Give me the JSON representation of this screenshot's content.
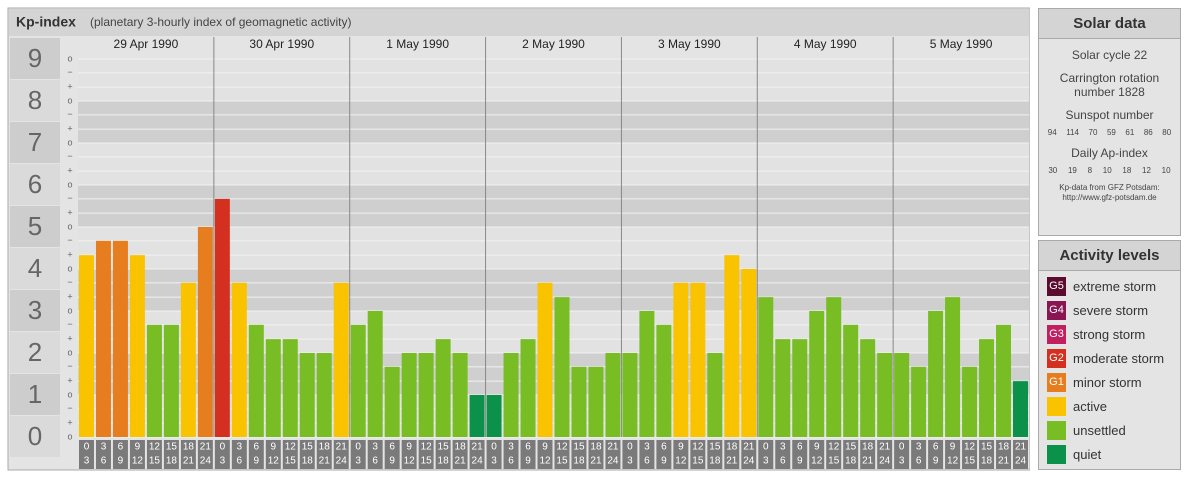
{
  "chart_data": {
    "type": "bar",
    "title": "Kp-index",
    "subtitle": "(planetary 3-hourly index of geomagnetic activity)",
    "days": [
      "29 Apr 1990",
      "30 Apr 1990",
      "1 May 1990",
      "2 May 1990",
      "3 May 1990",
      "4 May 1990",
      "5 May 1990"
    ],
    "intervals": [
      [
        "0",
        "3"
      ],
      [
        "3",
        "6"
      ],
      [
        "6",
        "9"
      ],
      [
        "9",
        "12"
      ],
      [
        "12",
        "15"
      ],
      [
        "15",
        "18"
      ],
      [
        "18",
        "21"
      ],
      [
        "21",
        "24"
      ]
    ],
    "values": [
      4.33,
      4.67,
      4.67,
      4.33,
      2.67,
      2.67,
      3.67,
      5,
      5.67,
      3.67,
      2.67,
      2.33,
      2.33,
      2,
      2,
      3.67,
      2.67,
      3,
      1.67,
      2,
      2,
      2.33,
      2,
      1,
      1,
      2,
      2.33,
      3.67,
      3.33,
      1.67,
      1.67,
      2,
      2,
      3,
      2.67,
      3.67,
      3.67,
      2,
      4.33,
      4,
      3.33,
      2.33,
      2.33,
      3,
      3.33,
      2.67,
      2.33,
      2,
      2,
      1.67,
      3,
      3.33,
      1.67,
      2.33,
      2.67,
      1.33
    ],
    "colors": [
      "#f9c300",
      "#e67e1f",
      "#e67e1f",
      "#f9c300",
      "#77bd23",
      "#77bd23",
      "#f9c300",
      "#e67e1f",
      "#d43020",
      "#f9c300",
      "#77bd23",
      "#77bd23",
      "#77bd23",
      "#77bd23",
      "#77bd23",
      "#f9c300",
      "#77bd23",
      "#77bd23",
      "#77bd23",
      "#77bd23",
      "#77bd23",
      "#77bd23",
      "#77bd23",
      "#0b9149",
      "#0b9149",
      "#77bd23",
      "#77bd23",
      "#f9c300",
      "#77bd23",
      "#77bd23",
      "#77bd23",
      "#77bd23",
      "#77bd23",
      "#77bd23",
      "#77bd23",
      "#f9c300",
      "#f9c300",
      "#77bd23",
      "#f9c300",
      "#f9c300",
      "#77bd23",
      "#77bd23",
      "#77bd23",
      "#77bd23",
      "#77bd23",
      "#77bd23",
      "#77bd23",
      "#77bd23",
      "#77bd23",
      "#77bd23",
      "#77bd23",
      "#77bd23",
      "#77bd23",
      "#77bd23",
      "#77bd23",
      "#0b9149"
    ],
    "ylim": [
      0,
      9
    ],
    "yticks": [
      0,
      1,
      2,
      3,
      4,
      5,
      6,
      7,
      8,
      9
    ],
    "yticks_minor": [
      {
        "value": 0,
        "label": "o"
      },
      {
        "value": 0.33,
        "label": "+"
      },
      {
        "value": 0.67,
        "label": "−"
      },
      {
        "value": 1,
        "label": "o"
      },
      {
        "value": 1.33,
        "label": "+"
      },
      {
        "value": 1.67,
        "label": "−"
      },
      {
        "value": 2,
        "label": "o"
      },
      {
        "value": 2.33,
        "label": "+"
      },
      {
        "value": 2.67,
        "label": "−"
      },
      {
        "value": 3,
        "label": "o"
      },
      {
        "value": 3.33,
        "label": "+"
      },
      {
        "value": 3.67,
        "label": "−"
      },
      {
        "value": 4,
        "label": "o"
      },
      {
        "value": 4.33,
        "label": "+"
      },
      {
        "value": 4.67,
        "label": "−"
      },
      {
        "value": 5,
        "label": "o"
      },
      {
        "value": 5.33,
        "label": "+"
      },
      {
        "value": 5.67,
        "label": "−"
      },
      {
        "value": 6,
        "label": "o"
      },
      {
        "value": 6.33,
        "label": "+"
      },
      {
        "value": 6.67,
        "label": "−"
      },
      {
        "value": 7,
        "label": "o"
      },
      {
        "value": 7.33,
        "label": "+"
      },
      {
        "value": 7.67,
        "label": "−"
      },
      {
        "value": 8,
        "label": "o"
      },
      {
        "value": 8.33,
        "label": "+"
      },
      {
        "value": 8.67,
        "label": "−"
      },
      {
        "value": 9,
        "label": "o"
      }
    ],
    "grid": true
  },
  "solar_data": {
    "title": "Solar data",
    "cycle": "Solar cycle 22",
    "carrington": "Carrington rotation number 1828",
    "sunspot_title": "Sunspot number",
    "sunspot_numbers": [
      94,
      114,
      70,
      59,
      61,
      86,
      80
    ],
    "ap_title": "Daily Ap-index",
    "ap_index": [
      30,
      19,
      8,
      10,
      18,
      12,
      10
    ],
    "source": "Kp-data from GFZ Potsdam:",
    "source_url": "http://www.gfz-potsdam.de"
  },
  "activity_levels": {
    "title": "Activity levels",
    "items": [
      {
        "badge": "G5",
        "label": "extreme storm",
        "color": "#5b0b2e"
      },
      {
        "badge": "G4",
        "label": "severe storm",
        "color": "#8a1553"
      },
      {
        "badge": "G3",
        "label": "strong storm",
        "color": "#c0205e"
      },
      {
        "badge": "G2",
        "label": "moderate storm",
        "color": "#d43020"
      },
      {
        "badge": "G1",
        "label": "minor storm",
        "color": "#e67e1f"
      },
      {
        "label": "active",
        "color": "#f9c300"
      },
      {
        "label": "unsettled",
        "color": "#77bd23"
      },
      {
        "label": "quiet",
        "color": "#0b9149"
      }
    ]
  }
}
